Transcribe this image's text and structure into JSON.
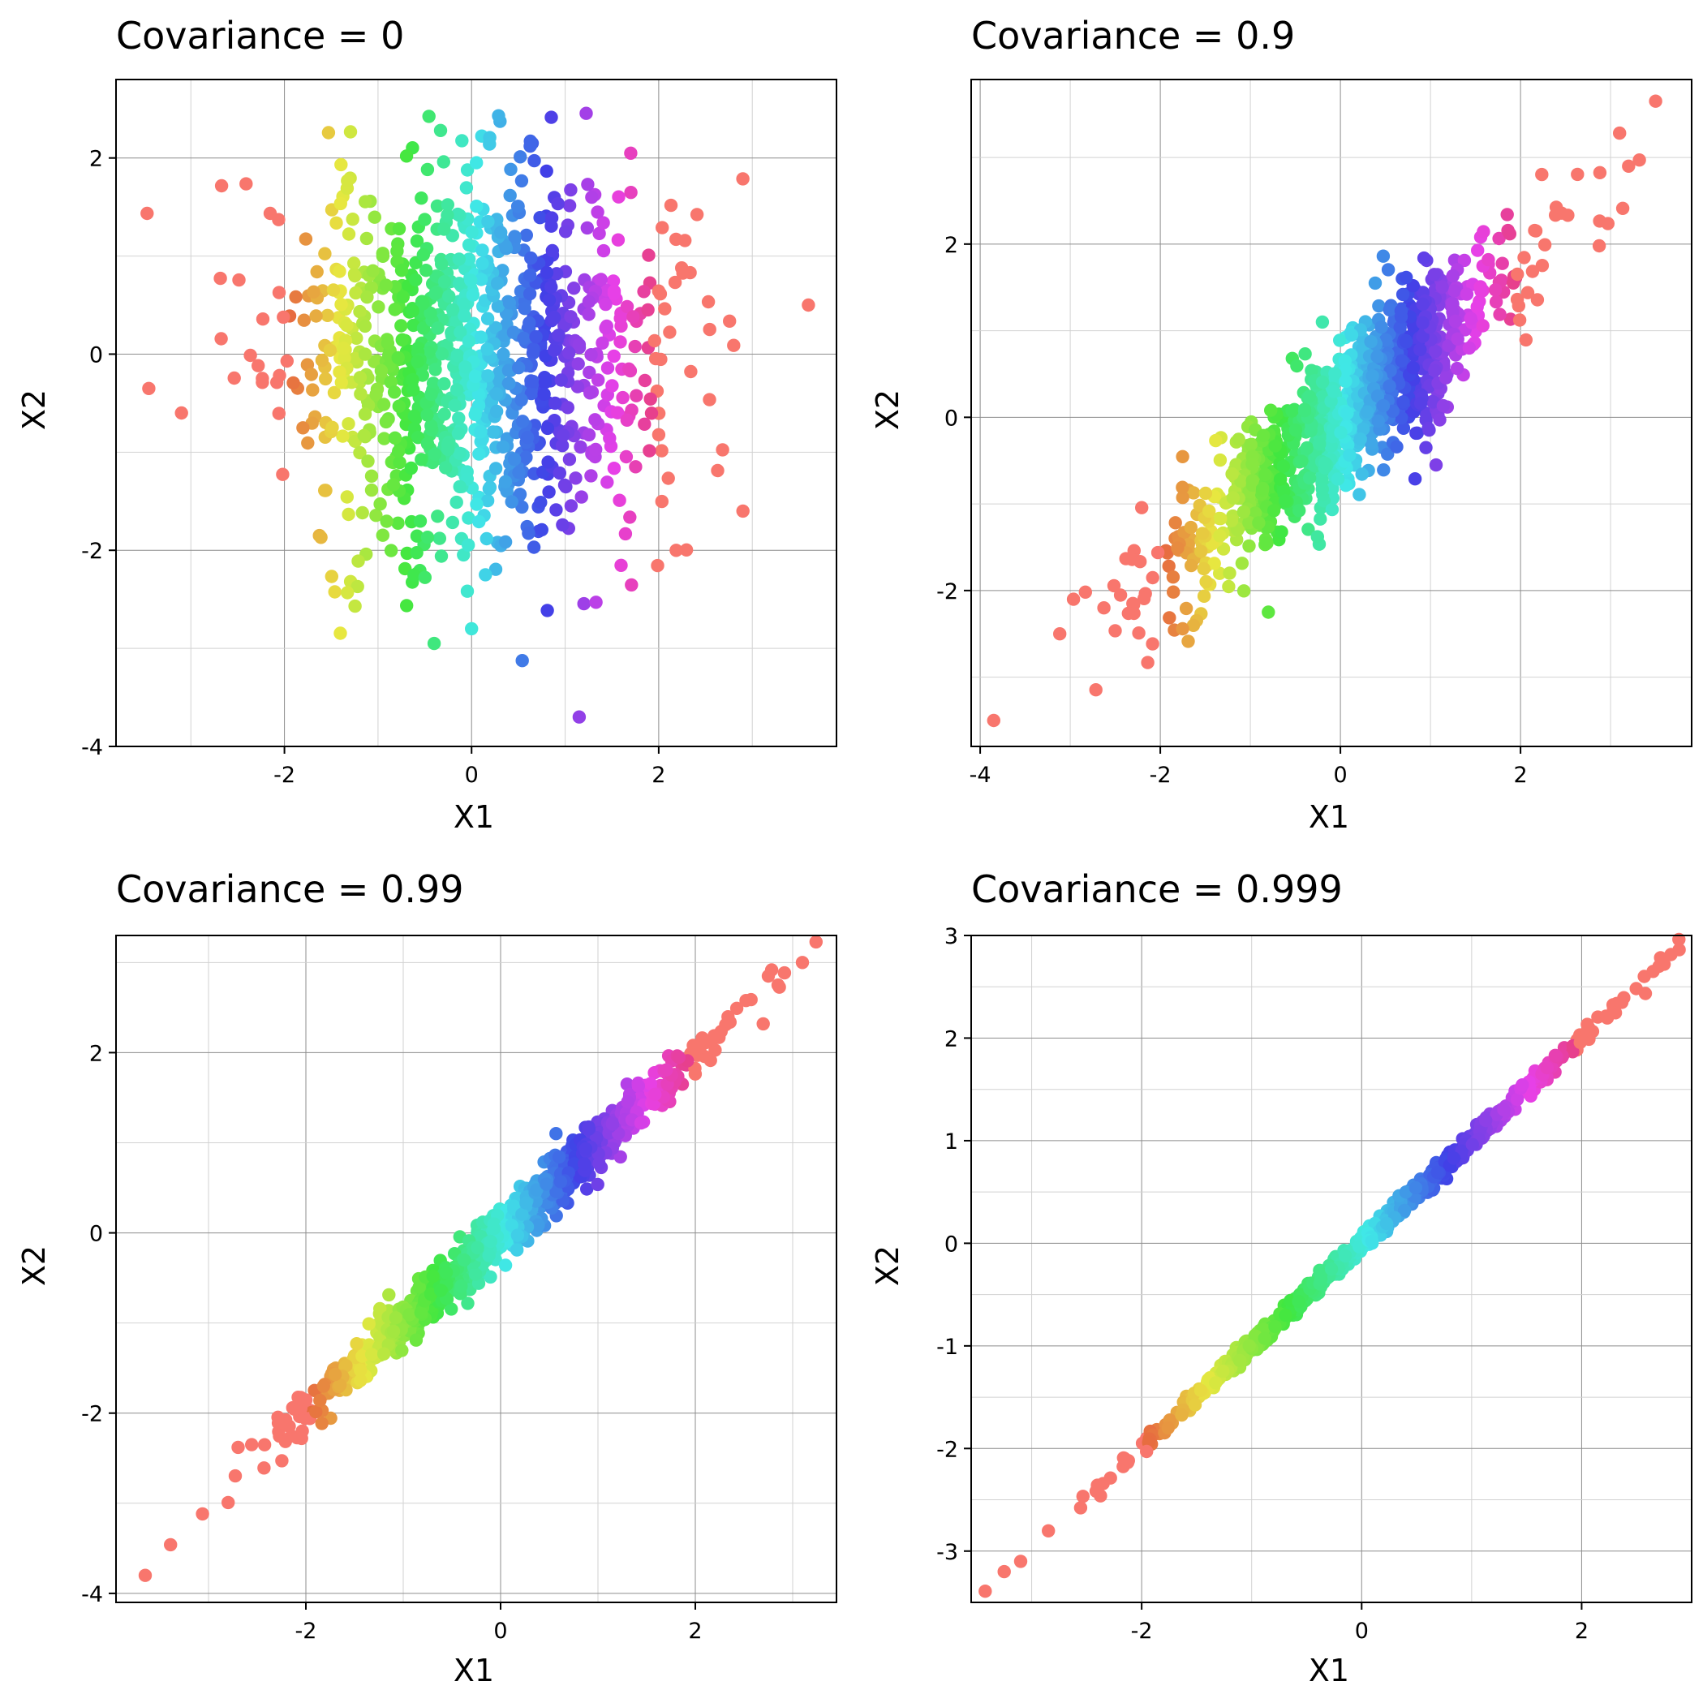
{
  "chart_data": [
    {
      "type": "scatter",
      "title": "Covariance = 0",
      "xlabel": "X1",
      "ylabel": "X2",
      "covariance": 0,
      "n_points": 1000,
      "seed": 11,
      "xlim": [
        -3.8,
        3.9
      ],
      "ylim": [
        -4.0,
        2.8
      ],
      "xticks": [
        -2,
        0,
        2
      ],
      "yticks": [
        -4,
        -2,
        0,
        2
      ],
      "x_tick_labels": [
        "-2",
        "0",
        "2"
      ],
      "y_tick_labels": [
        "-4",
        "-2",
        "0",
        "2"
      ],
      "color_by": "X1",
      "color_scale": "hue (red → orange → olive → green → cyan → blue → purple → pink)",
      "grid": true,
      "outliers": [
        {
          "x": 3.6,
          "y": 0.5
        },
        {
          "x": -3.45,
          "y": -0.35
        },
        {
          "x": -3.1,
          "y": -0.6
        },
        {
          "x": 2.9,
          "y": -1.6
        },
        {
          "x": 1.15,
          "y": -3.7
        },
        {
          "x": -0.4,
          "y": -2.95
        },
        {
          "x": 0.0,
          "y": -2.8
        }
      ]
    },
    {
      "type": "scatter",
      "title": "Covariance = 0.9",
      "xlabel": "X1",
      "ylabel": "X2",
      "covariance": 0.9,
      "n_points": 1000,
      "seed": 22,
      "xlim": [
        -4.1,
        3.9
      ],
      "ylim": [
        -3.8,
        3.9
      ],
      "xticks": [
        -4,
        -2,
        0,
        2
      ],
      "yticks": [
        -2,
        0,
        2
      ],
      "x_tick_labels": [
        "-4",
        "-2",
        "0",
        "2"
      ],
      "y_tick_labels": [
        "-2",
        "0",
        "2"
      ],
      "color_by": "X1",
      "grid": true,
      "outliers": [
        {
          "x": 3.5,
          "y": 3.65
        },
        {
          "x": 3.2,
          "y": 2.9
        },
        {
          "x": -3.85,
          "y": -3.5
        },
        {
          "x": -0.8,
          "y": -2.25
        },
        {
          "x": 0.95,
          "y": -0.35
        },
        {
          "x": -0.2,
          "y": 1.1
        }
      ]
    },
    {
      "type": "scatter",
      "title": "Covariance = 0.99",
      "xlabel": "X1",
      "ylabel": "X2",
      "covariance": 0.99,
      "n_points": 1000,
      "seed": 33,
      "xlim": [
        -3.95,
        3.45
      ],
      "ylim": [
        -4.1,
        3.3
      ],
      "xticks": [
        -2,
        0,
        2
      ],
      "yticks": [
        -4,
        -2,
        0,
        2
      ],
      "x_tick_labels": [
        "-2",
        "0",
        "2"
      ],
      "y_tick_labels": [
        "-4",
        "-2",
        "0",
        "2"
      ],
      "color_by": "X1",
      "grid": true,
      "outliers": [
        {
          "x": -3.65,
          "y": -3.8
        },
        {
          "x": 3.1,
          "y": 3.0
        },
        {
          "x": 2.75,
          "y": 2.85
        },
        {
          "x": 2.85,
          "y": 2.75
        }
      ]
    },
    {
      "type": "scatter",
      "title": "Covariance = 0.999",
      "xlabel": "X1",
      "ylabel": "X2",
      "covariance": 0.999,
      "n_points": 1000,
      "seed": 44,
      "xlim": [
        -3.55,
        3.0
      ],
      "ylim": [
        -3.5,
        3.0
      ],
      "xticks": [
        -2,
        0,
        2
      ],
      "yticks": [
        -3,
        -2,
        -1,
        0,
        1,
        2,
        3
      ],
      "x_tick_labels": [
        "-2",
        "0",
        "2"
      ],
      "y_tick_labels": [
        "-3",
        "-2",
        "-1",
        "0",
        "1",
        "2",
        "3"
      ],
      "color_by": "X1",
      "grid": true,
      "outliers": [
        {
          "x": -3.25,
          "y": -3.2
        },
        {
          "x": -3.1,
          "y": -3.1
        },
        {
          "x": 2.75,
          "y": 2.72
        },
        {
          "x": 2.65,
          "y": 2.65
        }
      ]
    }
  ]
}
